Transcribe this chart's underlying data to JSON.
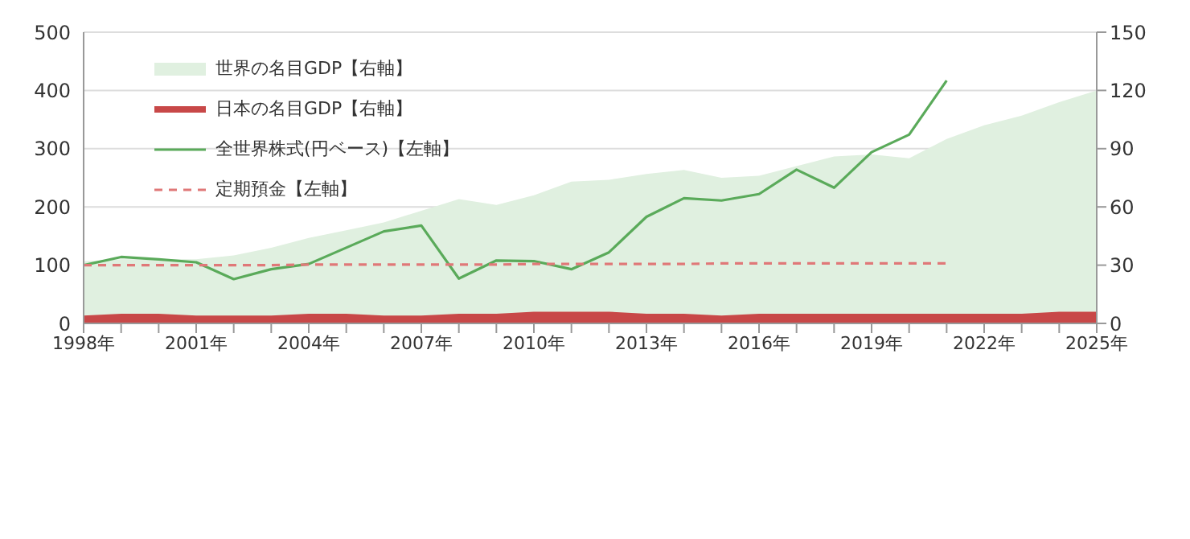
{
  "chart_data": {
    "type": "line",
    "x": [
      1998,
      1999,
      2000,
      2001,
      2002,
      2003,
      2004,
      2005,
      2006,
      2007,
      2008,
      2009,
      2010,
      2011,
      2012,
      2013,
      2014,
      2015,
      2016,
      2017,
      2018,
      2019,
      2020,
      2021,
      2022,
      2023,
      2024,
      2025
    ],
    "series": [
      {
        "name": "世界の名目GDP【右軸】",
        "type": "area",
        "axis": "y2",
        "color": "#e0f0e0",
        "values": [
          32,
          33,
          33,
          33,
          35,
          39,
          44,
          48,
          52,
          58,
          64,
          61,
          66,
          73,
          74,
          77,
          79,
          75,
          76,
          81,
          86,
          87,
          85,
          95,
          102,
          107,
          114,
          120
        ]
      },
      {
        "name": "日本の名目GDP【右軸】",
        "type": "area",
        "axis": "y2",
        "color": "#c84848",
        "values": [
          4,
          5,
          5,
          4,
          4,
          4,
          5,
          5,
          4,
          4,
          5,
          5,
          6,
          6,
          6,
          5,
          5,
          4,
          5,
          5,
          5,
          5,
          5,
          5,
          5,
          5,
          6,
          6
        ]
      },
      {
        "name": "全世界株式(円ベース)【左軸】",
        "color": "#5aaa5a",
        "values": [
          100,
          114,
          110,
          105,
          76,
          93,
          102,
          130,
          158,
          168,
          77,
          108,
          107,
          93,
          122,
          183,
          215,
          211,
          222,
          264,
          233,
          294,
          324,
          417,
          null,
          null,
          null,
          null
        ]
      },
      {
        "name": "定期預金【左軸】",
        "line_style": "dashed",
        "color": "#e07878",
        "values": [
          100,
          100,
          100,
          100,
          100,
          100,
          101,
          101,
          101,
          101,
          101,
          101,
          102,
          102,
          102,
          102,
          102,
          103,
          103,
          103,
          103,
          103,
          103,
          103,
          null,
          null,
          null,
          null
        ]
      }
    ],
    "xlim": [
      1998,
      2025
    ],
    "xticks": [
      {
        "value": 1998,
        "label": "1998年"
      },
      {
        "value": 1999,
        "label": null
      },
      {
        "value": 2000,
        "label": null
      },
      {
        "value": 2001,
        "label": "2001年"
      },
      {
        "value": 2002,
        "label": null
      },
      {
        "value": 2003,
        "label": null
      },
      {
        "value": 2004,
        "label": "2004年"
      },
      {
        "value": 2005,
        "label": null
      },
      {
        "value": 2006,
        "label": null
      },
      {
        "value": 2007,
        "label": "2007年"
      },
      {
        "value": 2008,
        "label": null
      },
      {
        "value": 2009,
        "label": null
      },
      {
        "value": 2010,
        "label": "2010年"
      },
      {
        "value": 2011,
        "label": null
      },
      {
        "value": 2012,
        "label": null
      },
      {
        "value": 2013,
        "label": "2013年"
      },
      {
        "value": 2014,
        "label": null
      },
      {
        "value": 2015,
        "label": null
      },
      {
        "value": 2016,
        "label": "2016年"
      },
      {
        "value": 2017,
        "label": null
      },
      {
        "value": 2018,
        "label": null
      },
      {
        "value": 2019,
        "label": "2019年"
      },
      {
        "value": 2020,
        "label": null
      },
      {
        "value": 2021,
        "label": null
      },
      {
        "value": 2022,
        "label": "2022年"
      },
      {
        "value": 2023,
        "label": null
      },
      {
        "value": 2024,
        "label": null
      },
      {
        "value": 2025,
        "label": "2025年"
      }
    ],
    "ylim": [
      0,
      500
    ],
    "yticks": [
      0,
      100,
      200,
      300,
      400,
      500
    ],
    "y2lim": [
      0,
      150
    ],
    "y2ticks": [
      0,
      30,
      60,
      90,
      120,
      150
    ],
    "grid": "y",
    "legend": "top left",
    "marker": "none"
  }
}
